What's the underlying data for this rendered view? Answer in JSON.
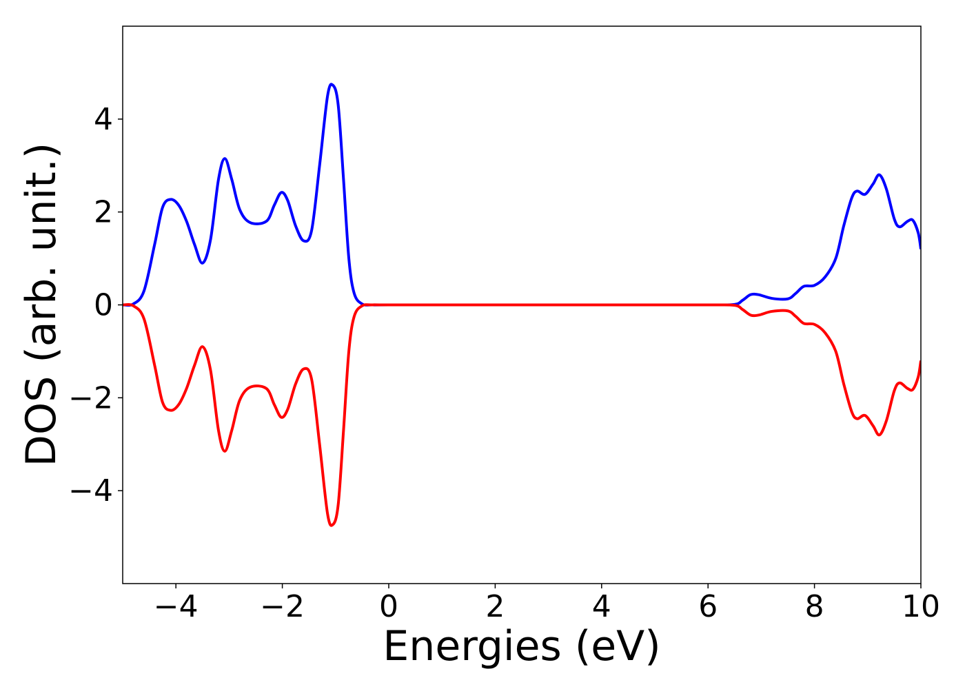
{
  "chart_data": {
    "type": "line",
    "title": "",
    "xlabel": "Energies (eV)",
    "ylabel": "DOS (arb. unit.)",
    "xlim": [
      -5,
      10
    ],
    "ylim": [
      -6,
      6
    ],
    "x_ticks": [
      -4,
      -2,
      0,
      2,
      4,
      6,
      8,
      10
    ],
    "x_tick_labels": [
      "−4",
      "−2",
      "0",
      "2",
      "4",
      "6",
      "8",
      "10"
    ],
    "y_ticks": [
      -4,
      -2,
      0,
      2,
      4
    ],
    "y_tick_labels": [
      "−4",
      "−2",
      "0",
      "2",
      "4"
    ],
    "grid": false,
    "legend": "none",
    "series": [
      {
        "color": "#0000ff",
        "points": [
          [
            -5.0,
            0.0
          ],
          [
            -4.8,
            0.02
          ],
          [
            -4.6,
            0.3
          ],
          [
            -4.4,
            1.3
          ],
          [
            -4.25,
            2.1
          ],
          [
            -4.1,
            2.27
          ],
          [
            -3.95,
            2.15
          ],
          [
            -3.8,
            1.8
          ],
          [
            -3.65,
            1.3
          ],
          [
            -3.5,
            0.9
          ],
          [
            -3.35,
            1.4
          ],
          [
            -3.2,
            2.7
          ],
          [
            -3.08,
            3.15
          ],
          [
            -2.95,
            2.7
          ],
          [
            -2.8,
            2.05
          ],
          [
            -2.6,
            1.77
          ],
          [
            -2.3,
            1.8
          ],
          [
            -2.15,
            2.15
          ],
          [
            -2.02,
            2.42
          ],
          [
            -1.9,
            2.25
          ],
          [
            -1.75,
            1.7
          ],
          [
            -1.6,
            1.38
          ],
          [
            -1.45,
            1.6
          ],
          [
            -1.3,
            3.0
          ],
          [
            -1.15,
            4.5
          ],
          [
            -1.05,
            4.73
          ],
          [
            -0.95,
            4.3
          ],
          [
            -0.85,
            2.7
          ],
          [
            -0.75,
            1.0
          ],
          [
            -0.65,
            0.25
          ],
          [
            -0.5,
            0.02
          ],
          [
            -0.3,
            0.0
          ],
          [
            0.0,
            0.0
          ],
          [
            2.0,
            0.0
          ],
          [
            4.0,
            0.0
          ],
          [
            6.0,
            0.0
          ],
          [
            6.5,
            0.01
          ],
          [
            6.65,
            0.1
          ],
          [
            6.8,
            0.22
          ],
          [
            6.95,
            0.22
          ],
          [
            7.2,
            0.14
          ],
          [
            7.5,
            0.13
          ],
          [
            7.65,
            0.25
          ],
          [
            7.8,
            0.4
          ],
          [
            8.0,
            0.42
          ],
          [
            8.2,
            0.6
          ],
          [
            8.4,
            1.0
          ],
          [
            8.55,
            1.7
          ],
          [
            8.7,
            2.3
          ],
          [
            8.8,
            2.45
          ],
          [
            8.95,
            2.38
          ],
          [
            9.1,
            2.6
          ],
          [
            9.22,
            2.8
          ],
          [
            9.35,
            2.5
          ],
          [
            9.5,
            1.85
          ],
          [
            9.6,
            1.68
          ],
          [
            9.75,
            1.8
          ],
          [
            9.85,
            1.82
          ],
          [
            9.95,
            1.55
          ],
          [
            10.0,
            1.2
          ]
        ]
      },
      {
        "color": "#ff0000",
        "points": [
          [
            -5.0,
            0.0
          ],
          [
            -4.8,
            -0.02
          ],
          [
            -4.6,
            -0.3
          ],
          [
            -4.4,
            -1.3
          ],
          [
            -4.25,
            -2.1
          ],
          [
            -4.1,
            -2.27
          ],
          [
            -3.95,
            -2.15
          ],
          [
            -3.8,
            -1.8
          ],
          [
            -3.65,
            -1.3
          ],
          [
            -3.5,
            -0.9
          ],
          [
            -3.35,
            -1.4
          ],
          [
            -3.2,
            -2.7
          ],
          [
            -3.08,
            -3.15
          ],
          [
            -2.95,
            -2.7
          ],
          [
            -2.8,
            -2.05
          ],
          [
            -2.6,
            -1.77
          ],
          [
            -2.3,
            -1.8
          ],
          [
            -2.15,
            -2.15
          ],
          [
            -2.02,
            -2.42
          ],
          [
            -1.9,
            -2.25
          ],
          [
            -1.75,
            -1.7
          ],
          [
            -1.6,
            -1.38
          ],
          [
            -1.45,
            -1.6
          ],
          [
            -1.3,
            -3.0
          ],
          [
            -1.15,
            -4.5
          ],
          [
            -1.05,
            -4.73
          ],
          [
            -0.95,
            -4.3
          ],
          [
            -0.85,
            -2.7
          ],
          [
            -0.75,
            -1.0
          ],
          [
            -0.65,
            -0.25
          ],
          [
            -0.5,
            -0.02
          ],
          [
            -0.3,
            0.0
          ],
          [
            0.0,
            0.0
          ],
          [
            2.0,
            0.0
          ],
          [
            4.0,
            0.0
          ],
          [
            6.0,
            0.0
          ],
          [
            6.5,
            -0.01
          ],
          [
            6.65,
            -0.1
          ],
          [
            6.8,
            -0.22
          ],
          [
            6.95,
            -0.22
          ],
          [
            7.2,
            -0.14
          ],
          [
            7.5,
            -0.13
          ],
          [
            7.65,
            -0.25
          ],
          [
            7.8,
            -0.4
          ],
          [
            8.0,
            -0.42
          ],
          [
            8.2,
            -0.6
          ],
          [
            8.4,
            -1.0
          ],
          [
            8.55,
            -1.7
          ],
          [
            8.7,
            -2.3
          ],
          [
            8.8,
            -2.45
          ],
          [
            8.95,
            -2.38
          ],
          [
            9.1,
            -2.6
          ],
          [
            9.22,
            -2.8
          ],
          [
            9.35,
            -2.5
          ],
          [
            9.5,
            -1.85
          ],
          [
            9.6,
            -1.68
          ],
          [
            9.75,
            -1.8
          ],
          [
            9.85,
            -1.82
          ],
          [
            9.95,
            -1.55
          ],
          [
            10.0,
            -1.2
          ]
        ]
      }
    ]
  }
}
